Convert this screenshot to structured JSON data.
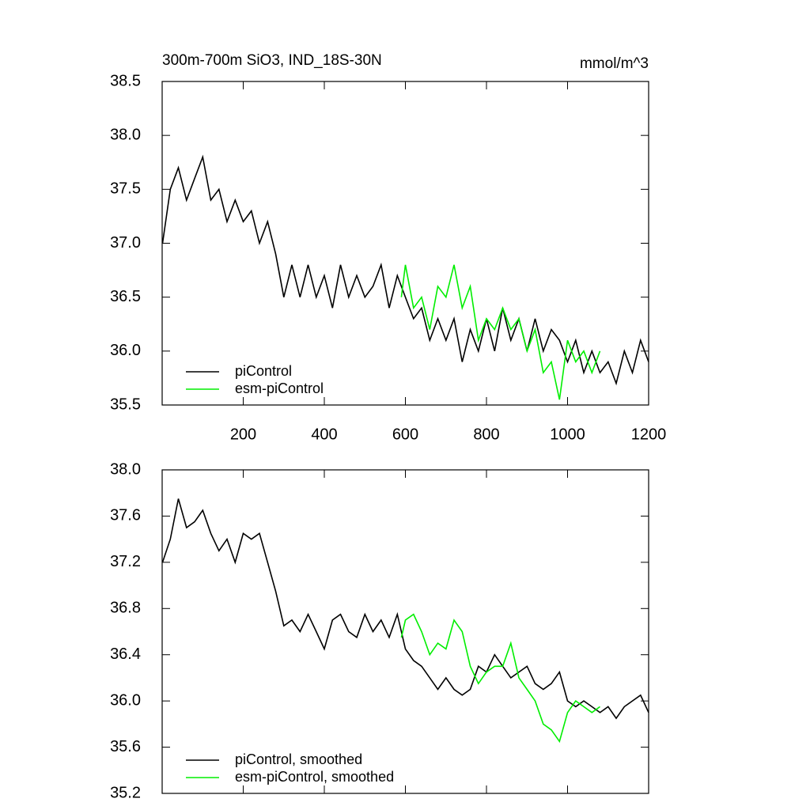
{
  "chart_data": [
    {
      "type": "line",
      "title": "300m-700m SiO3, IND_18S-30N",
      "units_label": "mmol/m^3",
      "xlim": [
        0,
        1200
      ],
      "xticks": [
        200,
        400,
        600,
        800,
        1000,
        1200
      ],
      "xtick_labels": true,
      "ylim": [
        35.5,
        38.5
      ],
      "yticks": [
        {
          "value": 35.5,
          "label": "35.5"
        },
        {
          "value": 36,
          "label": "36.0"
        },
        {
          "value": 36.5,
          "label": "36.5"
        },
        {
          "value": 37,
          "label": "37.0"
        },
        {
          "value": 37.5,
          "label": "37.5"
        },
        {
          "value": 38,
          "label": "38.0"
        },
        {
          "value": 38.5,
          "label": "38.5"
        }
      ],
      "legend": "lower-left",
      "series": [
        {
          "name": "piControl",
          "color": "#000000",
          "x": [
            1,
            20,
            40,
            60,
            80,
            100,
            120,
            140,
            160,
            180,
            200,
            220,
            240,
            260,
            280,
            300,
            320,
            340,
            360,
            380,
            400,
            420,
            440,
            460,
            480,
            500,
            520,
            540,
            560,
            580,
            600,
            620,
            640,
            660,
            680,
            700,
            720,
            740,
            760,
            780,
            800,
            820,
            840,
            860,
            880,
            900,
            920,
            940,
            960,
            980,
            1000,
            1020,
            1040,
            1060,
            1080,
            1100,
            1120,
            1140,
            1160,
            1180,
            1200
          ],
          "values": [
            37.0,
            37.5,
            37.7,
            37.4,
            37.6,
            37.8,
            37.4,
            37.5,
            37.2,
            37.4,
            37.2,
            37.3,
            37.0,
            37.2,
            36.9,
            36.5,
            36.8,
            36.5,
            36.8,
            36.5,
            36.7,
            36.4,
            36.8,
            36.5,
            36.7,
            36.5,
            36.6,
            36.8,
            36.4,
            36.7,
            36.5,
            36.3,
            36.4,
            36.1,
            36.3,
            36.1,
            36.3,
            35.9,
            36.2,
            36.0,
            36.3,
            36.0,
            36.4,
            36.1,
            36.3,
            36.0,
            36.3,
            36.0,
            36.2,
            36.1,
            35.9,
            36.1,
            35.8,
            36.0,
            35.8,
            35.9,
            35.7,
            36.0,
            35.8,
            36.1,
            35.9
          ]
        },
        {
          "name": "esm-piControl",
          "color": "#00ee00",
          "x": [
            590,
            600,
            620,
            640,
            660,
            680,
            700,
            720,
            740,
            760,
            780,
            800,
            820,
            840,
            860,
            880,
            900,
            920,
            940,
            960,
            980,
            1000,
            1020,
            1040,
            1060,
            1080
          ],
          "values": [
            36.5,
            36.8,
            36.4,
            36.5,
            36.2,
            36.6,
            36.5,
            36.8,
            36.4,
            36.6,
            36.1,
            36.3,
            36.2,
            36.4,
            36.2,
            36.3,
            36.0,
            36.2,
            35.8,
            35.9,
            35.55,
            36.1,
            35.9,
            36.0,
            35.8,
            36.0
          ]
        }
      ]
    },
    {
      "type": "line",
      "xlim": [
        0,
        1200
      ],
      "xticks": [
        200,
        400,
        600,
        800,
        1000,
        1200
      ],
      "xtick_labels": false,
      "ylim": [
        35.2,
        38.0
      ],
      "yticks": [
        {
          "value": 35.2,
          "label": "35.2"
        },
        {
          "value": 35.6,
          "label": "35.6"
        },
        {
          "value": 36,
          "label": "36.0"
        },
        {
          "value": 36.4,
          "label": "36.4"
        },
        {
          "value": 36.8,
          "label": "36.8"
        },
        {
          "value": 37.2,
          "label": "37.2"
        },
        {
          "value": 37.6,
          "label": "37.6"
        },
        {
          "value": 38,
          "label": "38.0"
        }
      ],
      "legend": "lower-left",
      "series": [
        {
          "name": "piControl, smoothed",
          "color": "#000000",
          "x": [
            1,
            20,
            40,
            60,
            80,
            100,
            120,
            140,
            160,
            180,
            200,
            220,
            240,
            260,
            280,
            300,
            320,
            340,
            360,
            380,
            400,
            420,
            440,
            460,
            480,
            500,
            520,
            540,
            560,
            580,
            600,
            620,
            640,
            660,
            680,
            700,
            720,
            740,
            760,
            780,
            800,
            820,
            840,
            860,
            880,
            900,
            920,
            940,
            960,
            980,
            1000,
            1020,
            1040,
            1060,
            1080,
            1100,
            1120,
            1140,
            1160,
            1180,
            1200
          ],
          "values": [
            37.2,
            37.4,
            37.75,
            37.5,
            37.55,
            37.65,
            37.45,
            37.3,
            37.4,
            37.2,
            37.45,
            37.4,
            37.45,
            37.2,
            36.95,
            36.65,
            36.7,
            36.6,
            36.75,
            36.6,
            36.45,
            36.7,
            36.75,
            36.6,
            36.55,
            36.75,
            36.6,
            36.7,
            36.55,
            36.75,
            36.45,
            36.35,
            36.3,
            36.2,
            36.1,
            36.2,
            36.1,
            36.05,
            36.1,
            36.3,
            36.25,
            36.4,
            36.3,
            36.2,
            36.25,
            36.3,
            36.15,
            36.1,
            36.15,
            36.25,
            36.0,
            35.95,
            36.0,
            35.95,
            35.9,
            35.95,
            35.85,
            35.95,
            36.0,
            36.05,
            35.9
          ]
        },
        {
          "name": "esm-piControl, smoothed",
          "color": "#00ee00",
          "x": [
            590,
            600,
            620,
            640,
            660,
            680,
            700,
            720,
            740,
            760,
            780,
            800,
            820,
            840,
            860,
            880,
            900,
            920,
            940,
            960,
            980,
            1000,
            1020,
            1040,
            1060,
            1080
          ],
          "values": [
            36.55,
            36.7,
            36.75,
            36.6,
            36.4,
            36.5,
            36.45,
            36.7,
            36.6,
            36.3,
            36.15,
            36.25,
            36.3,
            36.3,
            36.5,
            36.2,
            36.1,
            36.0,
            35.8,
            35.75,
            35.65,
            35.9,
            36.0,
            35.95,
            35.9,
            35.95
          ]
        }
      ]
    }
  ]
}
